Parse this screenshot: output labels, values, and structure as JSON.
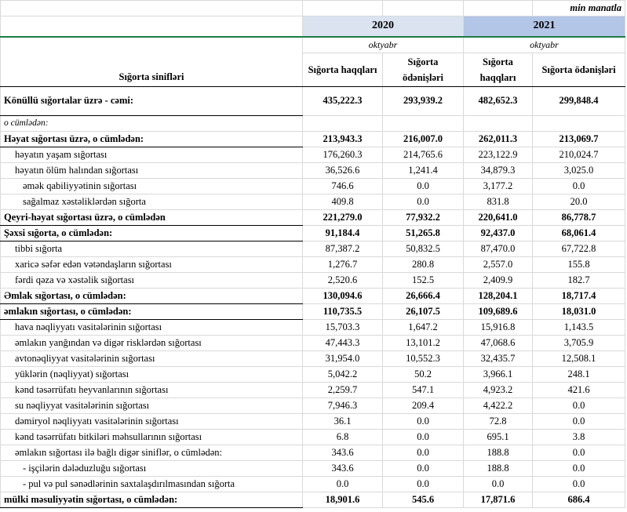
{
  "header": {
    "unit": "min manatla",
    "year_2020": "2020",
    "year_2021": "2021",
    "month_2020": "oktyabr",
    "month_2021": "oktyabr",
    "class_label": "Sığorta sinifləri",
    "columns": [
      "Sığorta haqqları",
      "Sığorta ödənişləri",
      "Sığorta haqqları",
      "Sığorta ödənişləri"
    ]
  },
  "table": {
    "total": [
      "Könüllü sığortalar üzrə - cəmi:",
      "435,222.3",
      "293,939.2",
      "482,652.3",
      "299,848.4"
    ],
    "note": "o cümlədən:",
    "rows": [
      [
        "Həyat sığortası üzrə, o cümlədən:",
        "213,943.3",
        "216,007.0",
        "262,011.3",
        "213,069.7"
      ],
      [
        "həyatın yaşam sığortası",
        "176,260.3",
        "214,765.6",
        "223,122.9",
        "210,024.7"
      ],
      [
        "həyatın ölüm halından sığortası",
        "36,526.6",
        "1,241.4",
        "34,879.3",
        "3,025.0"
      ],
      [
        "əmək qabiliyyətinin sığortası",
        "746.6",
        "0.0",
        "3,177.2",
        "0.0"
      ],
      [
        "sağalmaz xəstəliklərdən sığorta",
        "409.8",
        "0.0",
        "831.8",
        "20.0"
      ],
      [
        "Qeyri-həyat sığortası üzrə, o cümlədən",
        "221,279.0",
        "77,932.2",
        "220,641.0",
        "86,778.7"
      ],
      [
        "Şəxsi sığorta,  o cümlədən:",
        "91,184.4",
        "51,265.8",
        "92,437.0",
        "68,061.4"
      ],
      [
        "tibbi sığorta",
        "87,387.2",
        "50,832.5",
        "87,470.0",
        "67,722.8"
      ],
      [
        "xaricə səfər edən vətəndaşların sığortası",
        "1,276.7",
        "280.8",
        "2,557.0",
        "155.8"
      ],
      [
        "fərdi qəza və xəstəlik sığortası",
        "2,520.6",
        "152.5",
        "2,409.9",
        "182.7"
      ],
      [
        "Əmlak sığortası, o cümlədən:",
        "130,094.6",
        "26,666.4",
        "128,204.1",
        "18,717.4"
      ],
      [
        "əmlakın sığortası,  o cümlədən:",
        "110,735.5",
        "26,107.5",
        "109,689.6",
        "18,031.0"
      ],
      [
        "hava nəqliyyatı vasitələrinin sığortası",
        "15,703.3",
        "1,647.2",
        "15,916.8",
        "1,143.5"
      ],
      [
        "əmlakın yanğından və digər risklərdən sığortası",
        "47,443.3",
        "13,101.2",
        "47,068.6",
        "3,705.9"
      ],
      [
        "avtonəqliyyat vasitələrinin sığortası",
        "31,954.0",
        "10,552.3",
        "32,435.7",
        "12,508.1"
      ],
      [
        "yüklərin (nəqliyyat) sığortası",
        "5,042.2",
        "50.2",
        "3,966.1",
        "248.1"
      ],
      [
        "kənd təsərrüfatı heyvanlarının sığortası",
        "2,259.7",
        "547.1",
        "4,923.2",
        "421.6"
      ],
      [
        "su nəqliyyat vasitələrinin sığortası",
        "7,946.3",
        "209.4",
        "4,422.2",
        "0.0"
      ],
      [
        "dəmiryol nəqliyyatı vasitələrinin sığortası",
        "36.1",
        "0.0",
        "72.8",
        "0.0"
      ],
      [
        "kənd təsərrüfatı bitkiləri məhsullarının sığortası",
        "6.8",
        "0.0",
        "695.1",
        "3.8"
      ],
      [
        "əmlakın sığortası ilə bağlı digər siniflər,  o cümlədən:",
        "343.6",
        "0.0",
        "188.8",
        "0.0"
      ],
      [
        "- işçilərin dələduzluğu sığortası",
        "343.6",
        "0.0",
        "188.8",
        "0.0"
      ],
      [
        "- pul və pul sənədlərinin saxtalaşdırılmasından sığorta",
        "0.0",
        "0.0",
        "0.0",
        "0.0"
      ],
      [
        "mülki məsuliyyətin sığortası, o cümlədən:",
        "18,901.6",
        "545.6",
        "17,871.6",
        "686.4"
      ]
    ]
  }
}
